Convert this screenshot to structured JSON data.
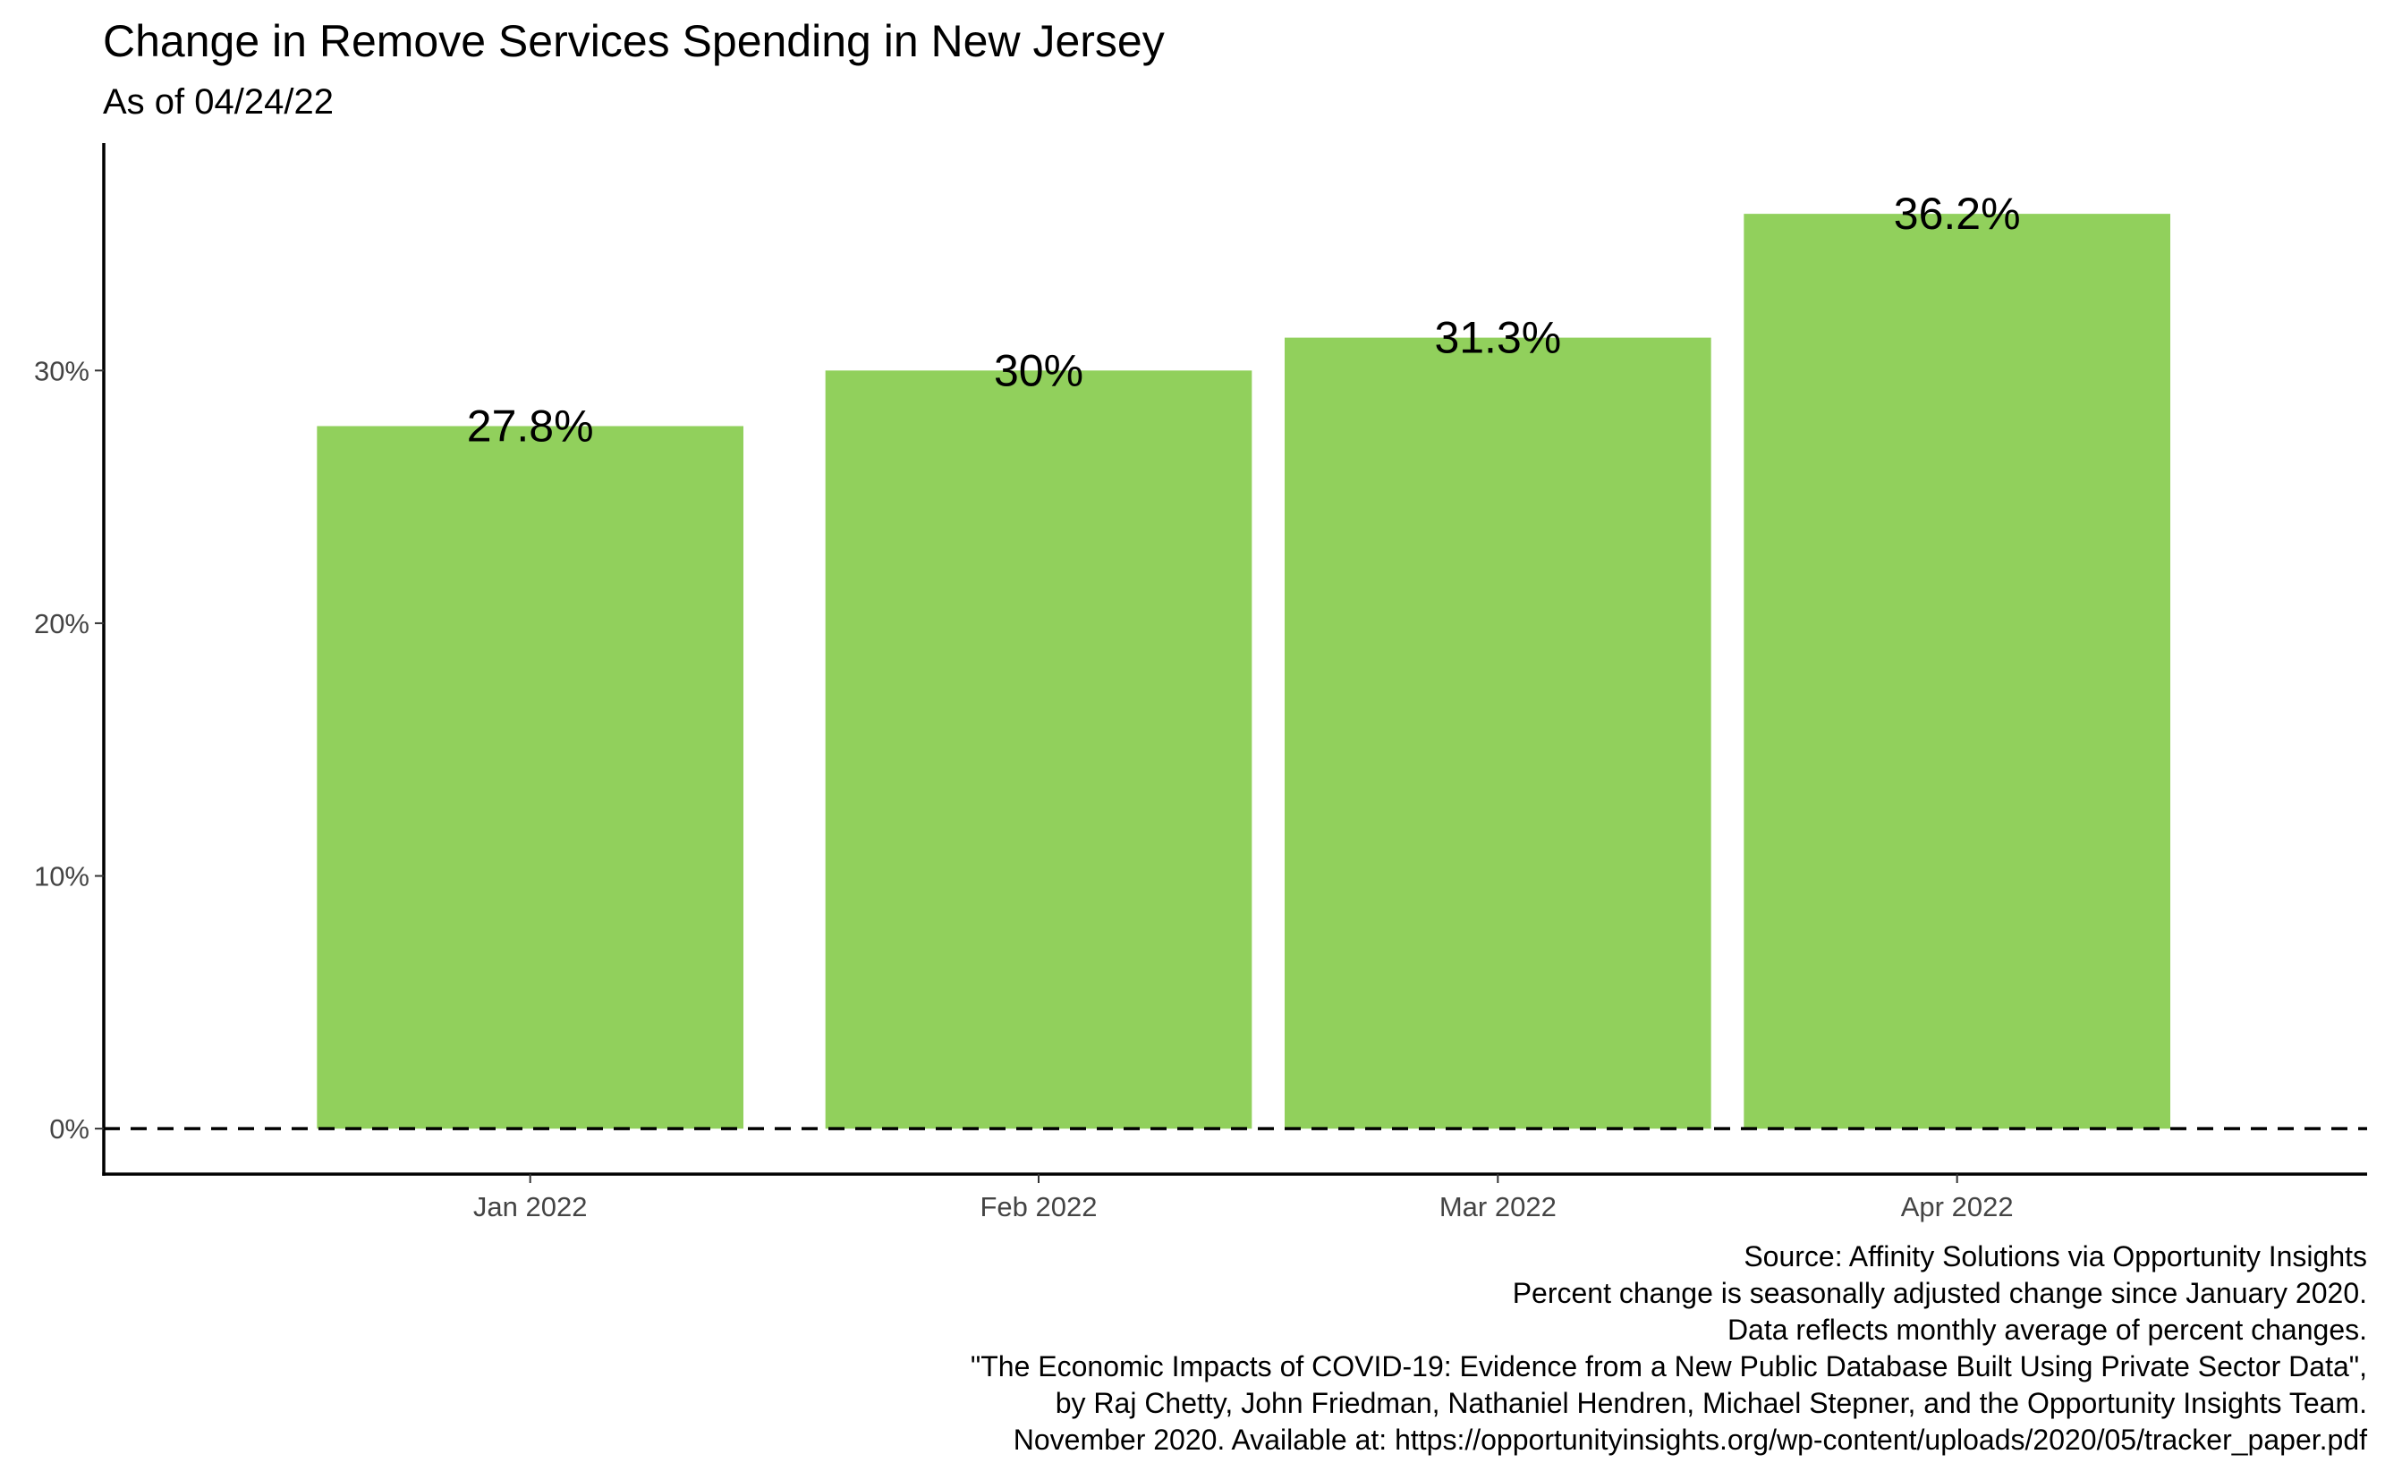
{
  "chart_data": {
    "type": "bar",
    "title": "Change in Remove Services Spending in New Jersey",
    "subtitle": "As of 04/24/22",
    "xlabel": "",
    "ylabel": "",
    "categories": [
      "Jan 2022",
      "Feb 2022",
      "Mar 2022",
      "Apr 2022"
    ],
    "x_dates": [
      "2022-01-15",
      "2022-02-15",
      "2022-03-15",
      "2022-04-12"
    ],
    "values": [
      27.8,
      30.0,
      31.3,
      36.2
    ],
    "value_labels": [
      "27.8%",
      "30%",
      "31.3%",
      "36.2%"
    ],
    "ylim": [
      -1.8,
      39.0
    ],
    "yticks": [
      0,
      10,
      20,
      30
    ],
    "ytick_labels": [
      "0%",
      "10%",
      "20%",
      "30%"
    ],
    "reference_line": {
      "y": 0,
      "style": "dashed"
    },
    "bar_color": "#91D05C",
    "grid": false,
    "legend": "none",
    "caption": [
      "Source: Affinity Solutions via Opportunity Insights",
      "Percent change is seasonally adjusted change since January 2020.",
      "Data reflects monthly average of percent changes.",
      "\"The Economic Impacts of COVID-19: Evidence from a New Public Database Built Using Private Sector Data\",",
      "by Raj Chetty, John Friedman, Nathaniel Hendren, Michael Stepner, and the Opportunity Insights Team.",
      "November 2020. Available at: https://opportunityinsights.org/wp-content/uploads/2020/05/tracker_paper.pdf"
    ]
  }
}
